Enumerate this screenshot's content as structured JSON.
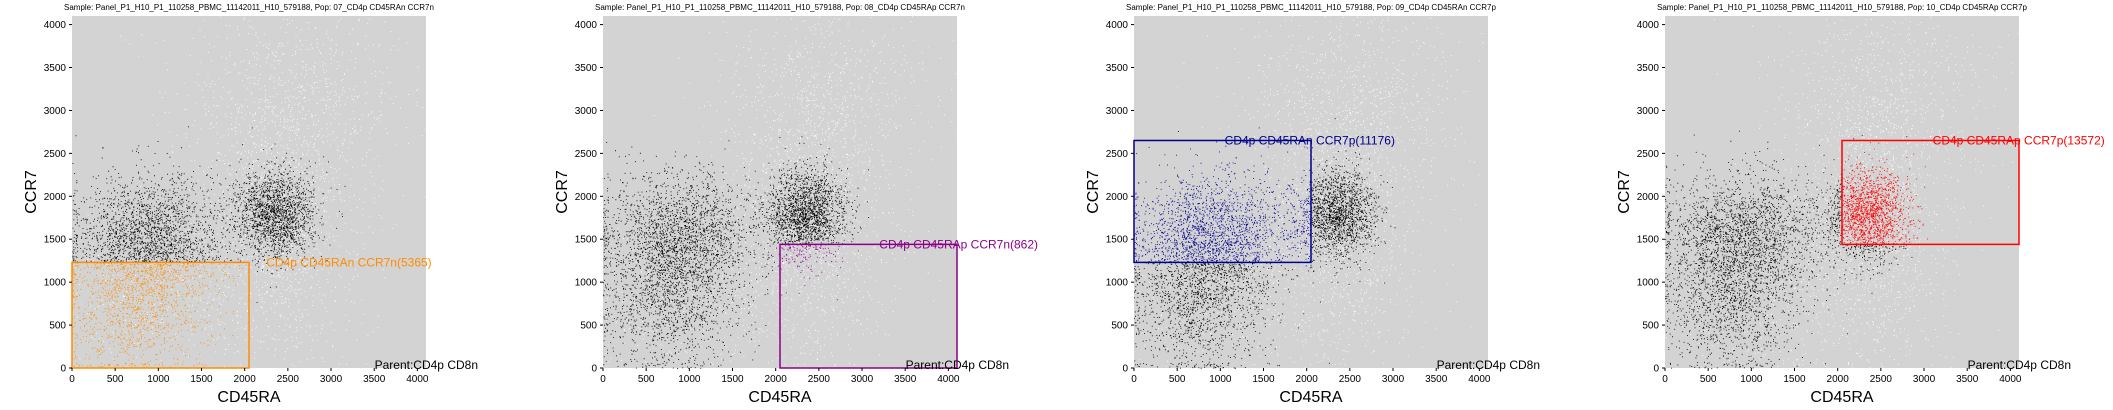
{
  "figure": {
    "x_range": [
      0,
      4100
    ],
    "y_range": [
      0,
      4100
    ],
    "x_ticks": [
      0,
      500,
      1000,
      1500,
      2000,
      2500,
      3000,
      3500,
      4000
    ],
    "y_ticks": [
      0,
      500,
      1000,
      1500,
      2000,
      2500,
      3000,
      3500,
      4000
    ],
    "plot_background": "#d3d3d3",
    "population_colors": {
      "background_events": "#ffffff",
      "parent_events": "#000000"
    }
  },
  "chart_data": [
    {
      "type": "scatter",
      "title": "Sample: Panel_P1_H10_P1_110258_PBMC_11142011_H10_579188, Pop: 07_CD4p CD45RAn CCR7n",
      "xlabel": "CD45RA",
      "ylabel": "CCR7",
      "xlim": [
        0,
        4100
      ],
      "ylim": [
        0,
        4100
      ],
      "parent_label": "Parent:CD4p CD8n",
      "gate": {
        "label": "CD4p CD45RAn CCR7n(5365)",
        "color": "#ff8c00",
        "x": [
          0,
          2050
        ],
        "y": [
          0,
          1230
        ]
      },
      "gate_label_anchor": [
        2250,
        1230
      ]
    },
    {
      "type": "scatter",
      "title": "Sample: Panel_P1_H10_P1_110258_PBMC_11142011_H10_579188, Pop: 08_CD4p CD45RAp CCR7n",
      "xlabel": "CD45RA",
      "ylabel": "CCR7",
      "xlim": [
        0,
        4100
      ],
      "ylim": [
        0,
        4100
      ],
      "parent_label": "Parent:CD4p CD8n",
      "gate": {
        "label": "CD4p CD45RAp CCR7n(862)",
        "color": "#8b008b",
        "x": [
          2050,
          4100
        ],
        "y": [
          0,
          1440
        ]
      },
      "gate_label_anchor": [
        3200,
        1440
      ]
    },
    {
      "type": "scatter",
      "title": "Sample: Panel_P1_H10_P1_110258_PBMC_11142011_H10_579188, Pop: 09_CD4p CD45RAn CCR7p",
      "xlabel": "CD45RA",
      "ylabel": "CCR7",
      "xlim": [
        0,
        4100
      ],
      "ylim": [
        0,
        4100
      ],
      "parent_label": "Parent:CD4p CD8n",
      "gate": {
        "label": "CD4p CD45RAn CCR7p(11176)",
        "color": "#00008b",
        "x": [
          0,
          2050
        ],
        "y": [
          1230,
          2650
        ]
      },
      "gate_label_anchor": [
        1050,
        2650
      ]
    },
    {
      "type": "scatter",
      "title": "Sample: Panel_P1_H10_P1_110258_PBMC_11142011_H10_579188, Pop: 10_CD4p CD45RAp CCR7p",
      "xlabel": "CD45RA",
      "ylabel": "CCR7",
      "xlim": [
        0,
        4100
      ],
      "ylim": [
        0,
        4100
      ],
      "parent_label": "Parent:CD4p CD8n",
      "gate": {
        "label": "CD4p CD45RAp CCR7p(13572)",
        "color": "#ff0000",
        "x": [
          2050,
          4100
        ],
        "y": [
          1440,
          2650
        ]
      },
      "gate_label_anchor": [
        3100,
        2650
      ]
    }
  ]
}
